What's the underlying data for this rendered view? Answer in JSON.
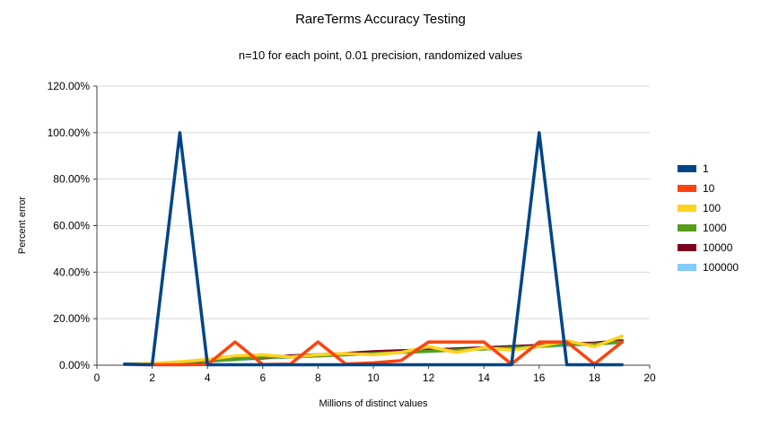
{
  "chart_data": {
    "type": "line",
    "title": "RareTerms Accuracy Testing",
    "subtitle": "n=10 for each point, 0.01 precision, randomized values",
    "xlabel": "Millions of distinct values",
    "ylabel": "Percent error",
    "xlim": [
      0,
      20
    ],
    "ylim": [
      0,
      120
    ],
    "grid": true,
    "legend_position": "right",
    "x_ticks": [
      0,
      2,
      4,
      6,
      8,
      10,
      12,
      14,
      16,
      18,
      20
    ],
    "y_tick_values": [
      0,
      20,
      40,
      60,
      80,
      100,
      120
    ],
    "y_ticks": [
      "0.00%",
      "20.00%",
      "40.00%",
      "60.00%",
      "80.00%",
      "100.00%",
      "120.00%"
    ],
    "x": [
      1,
      2,
      3,
      4,
      5,
      6,
      7,
      8,
      9,
      10,
      11,
      12,
      13,
      14,
      15,
      16,
      17,
      18,
      19
    ],
    "series": [
      {
        "name": "1",
        "color": "#004586",
        "values": [
          0.5,
          0.2,
          100,
          0.2,
          0.2,
          0.2,
          0.2,
          0.2,
          0.2,
          0.2,
          0.2,
          0.2,
          0.2,
          0.2,
          0.2,
          100,
          0.2,
          0.2,
          0.2
        ]
      },
      {
        "name": "10",
        "color": "#FF420E",
        "values": [
          0.3,
          0.2,
          0.2,
          0.3,
          10,
          0.3,
          0.5,
          10,
          0.5,
          1,
          2,
          10,
          10,
          10,
          0.5,
          10,
          10,
          0.5,
          10
        ]
      },
      {
        "name": "100",
        "color": "#FFD320",
        "values": [
          0.5,
          0.7,
          1.5,
          2.5,
          4,
          4.5,
          3.5,
          4.5,
          5,
          4.5,
          5.5,
          8,
          5.5,
          7.5,
          6.5,
          8,
          10.5,
          8,
          12.5
        ]
      },
      {
        "name": "1000",
        "color": "#579D1C",
        "values": [
          0.3,
          0.6,
          1.2,
          2,
          2.5,
          3.5,
          3.5,
          4,
          4.5,
          5,
          5.5,
          6,
          6.5,
          7,
          7.5,
          8,
          9,
          9,
          10
        ]
      },
      {
        "name": "10000",
        "color": "#7E0021",
        "values": [
          0.3,
          0.5,
          1,
          1.8,
          2.8,
          3.2,
          4,
          4.5,
          5,
          5.8,
          6.2,
          6.5,
          7,
          7.5,
          8,
          8.5,
          9,
          9.5,
          10.5
        ]
      },
      {
        "name": "100000",
        "color": "#83CAFF",
        "values": [
          0.3,
          0.5,
          1,
          1.7,
          2.3,
          3,
          3.5,
          4,
          4.5,
          5,
          5.5,
          6,
          6.5,
          7,
          7.5,
          8,
          8.5,
          9,
          9.8
        ]
      }
    ],
    "colors": {
      "gridline": "#d9d9d9",
      "axis": "#404040",
      "text": "#000000",
      "background": "#ffffff"
    }
  }
}
